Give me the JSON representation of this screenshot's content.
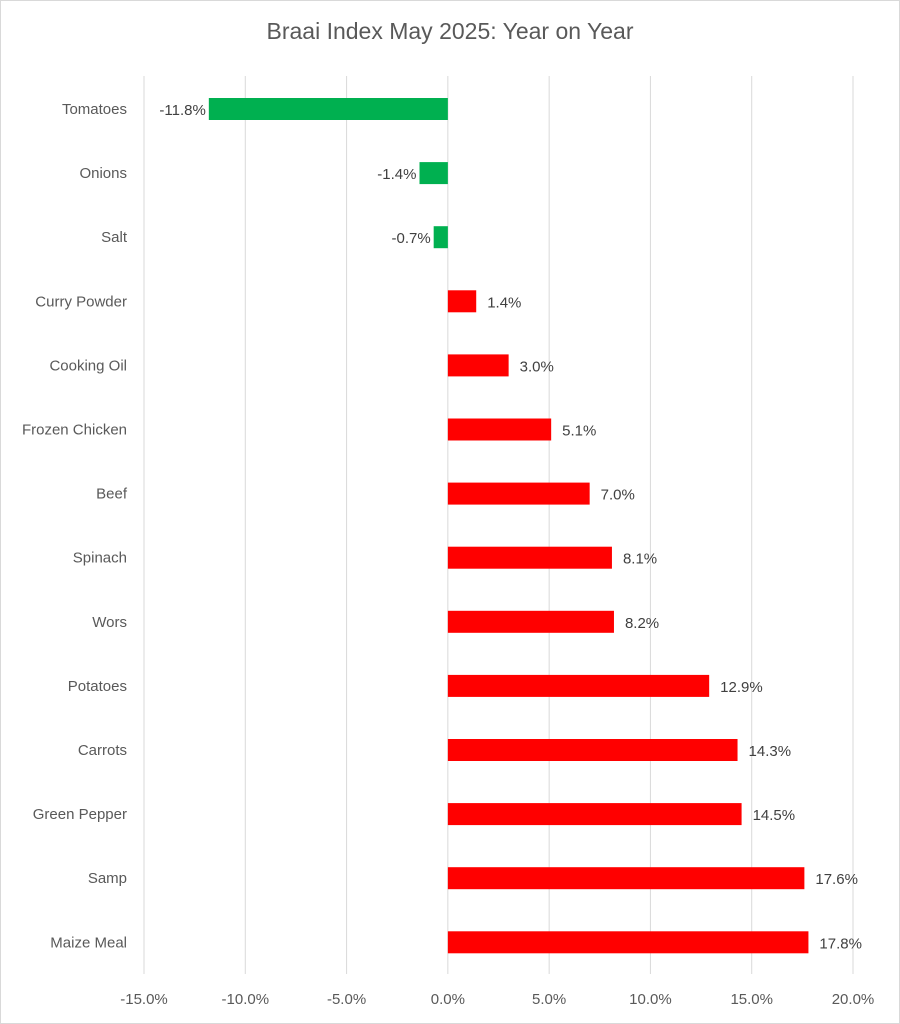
{
  "chart_data": {
    "type": "bar",
    "orientation": "horizontal",
    "title": "Braai Index May 2025: Year on Year",
    "xlabel": "",
    "ylabel": "",
    "categories": [
      "Tomatoes",
      "Onions",
      "Salt",
      "Curry Powder",
      "Cooking Oil",
      "Frozen Chicken",
      "Beef",
      "Spinach",
      "Wors",
      "Potatoes",
      "Carrots",
      "Green Pepper",
      "Samp",
      "Maize Meal"
    ],
    "values": [
      -11.8,
      -1.4,
      -0.7,
      1.4,
      3.0,
      5.1,
      7.0,
      8.1,
      8.2,
      12.9,
      14.3,
      14.5,
      17.6,
      17.8
    ],
    "data_labels": [
      "-11.8%",
      "-1.4%",
      "-0.7%",
      "1.4%",
      "3.0%",
      "5.1%",
      "7.0%",
      "8.1%",
      "8.2%",
      "12.9%",
      "14.3%",
      "14.5%",
      "17.6%",
      "17.8%"
    ],
    "xlim": [
      -15,
      20
    ],
    "x_ticks": [
      -15,
      -10,
      -5,
      0,
      5,
      10,
      15,
      20
    ],
    "x_tick_labels": [
      "-15.0%",
      "-10.0%",
      "-5.0%",
      "0.0%",
      "5.0%",
      "10.0%",
      "15.0%",
      "20.0%"
    ],
    "grid": true,
    "legend": "none",
    "colors": {
      "negative": "#00b050",
      "positive": "#ff0000",
      "grid": "#d9d9d9"
    }
  }
}
